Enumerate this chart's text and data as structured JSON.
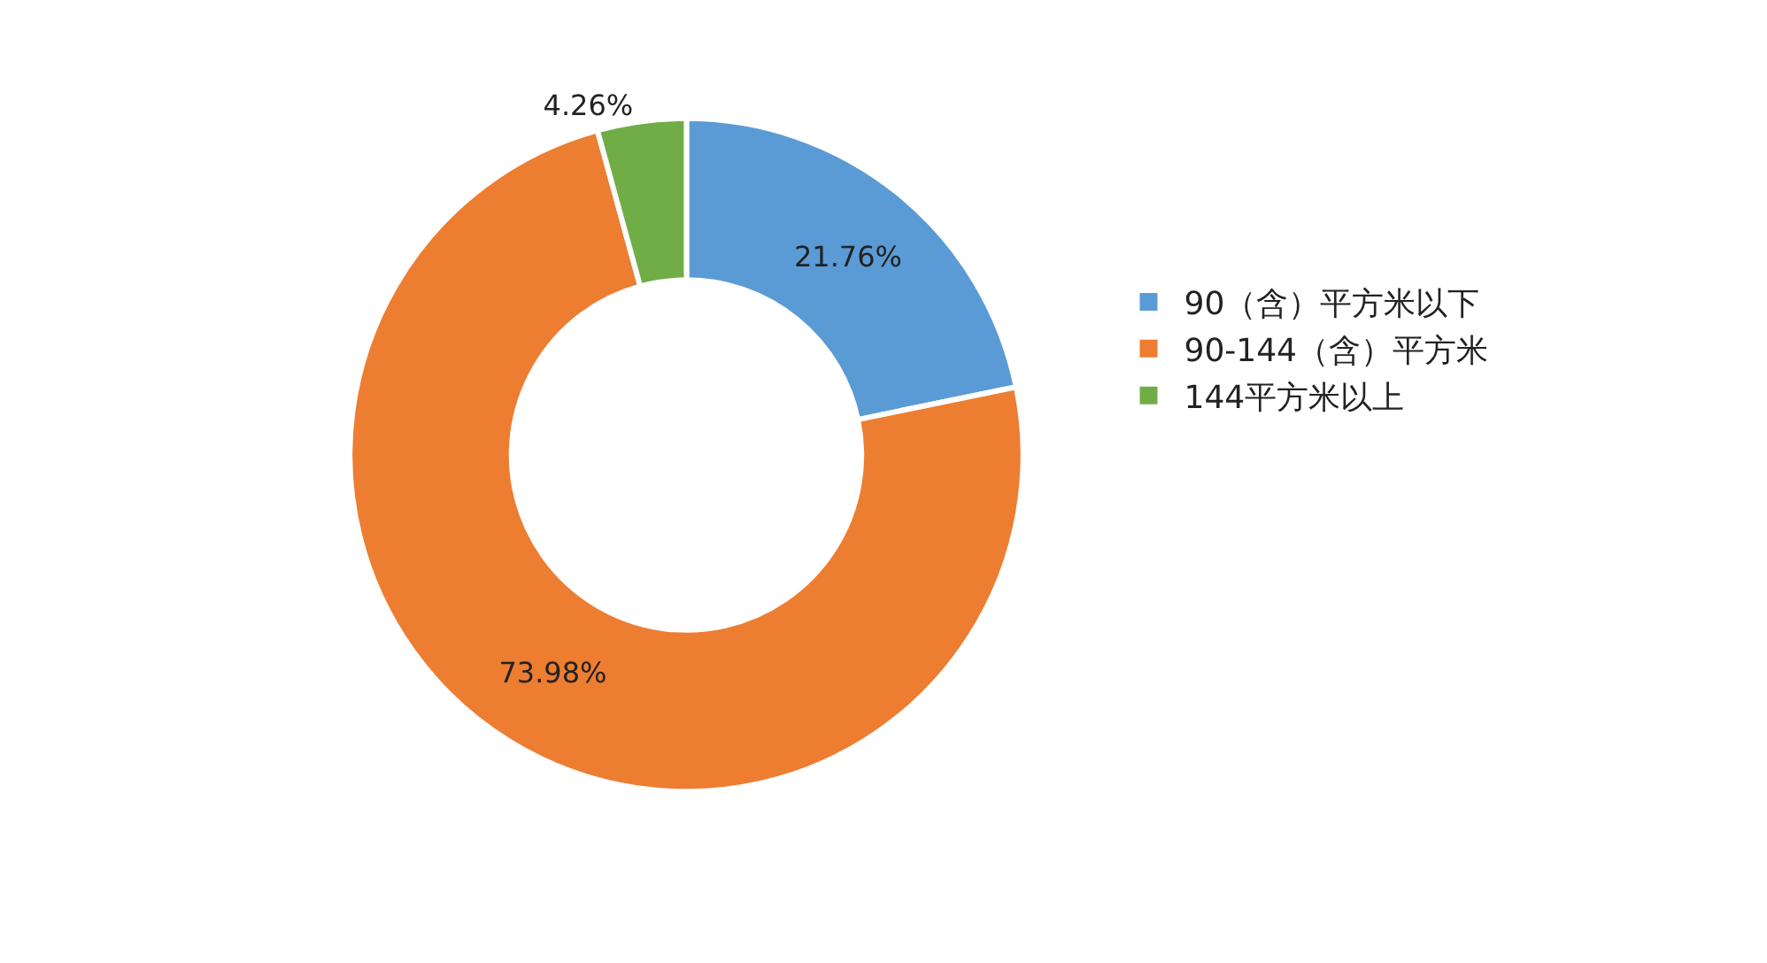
{
  "chart_data": {
    "type": "donut",
    "categories": [
      "90（含）平方米以下",
      "90-144（含）平方米",
      "144平方米以上"
    ],
    "values": [
      21.76,
      73.98,
      4.26
    ],
    "value_labels": [
      "21.76%",
      "73.98%",
      "4.26%"
    ],
    "colors": [
      "#5b9bd5",
      "#ed7d31",
      "#70ad47"
    ],
    "legend": "right"
  }
}
